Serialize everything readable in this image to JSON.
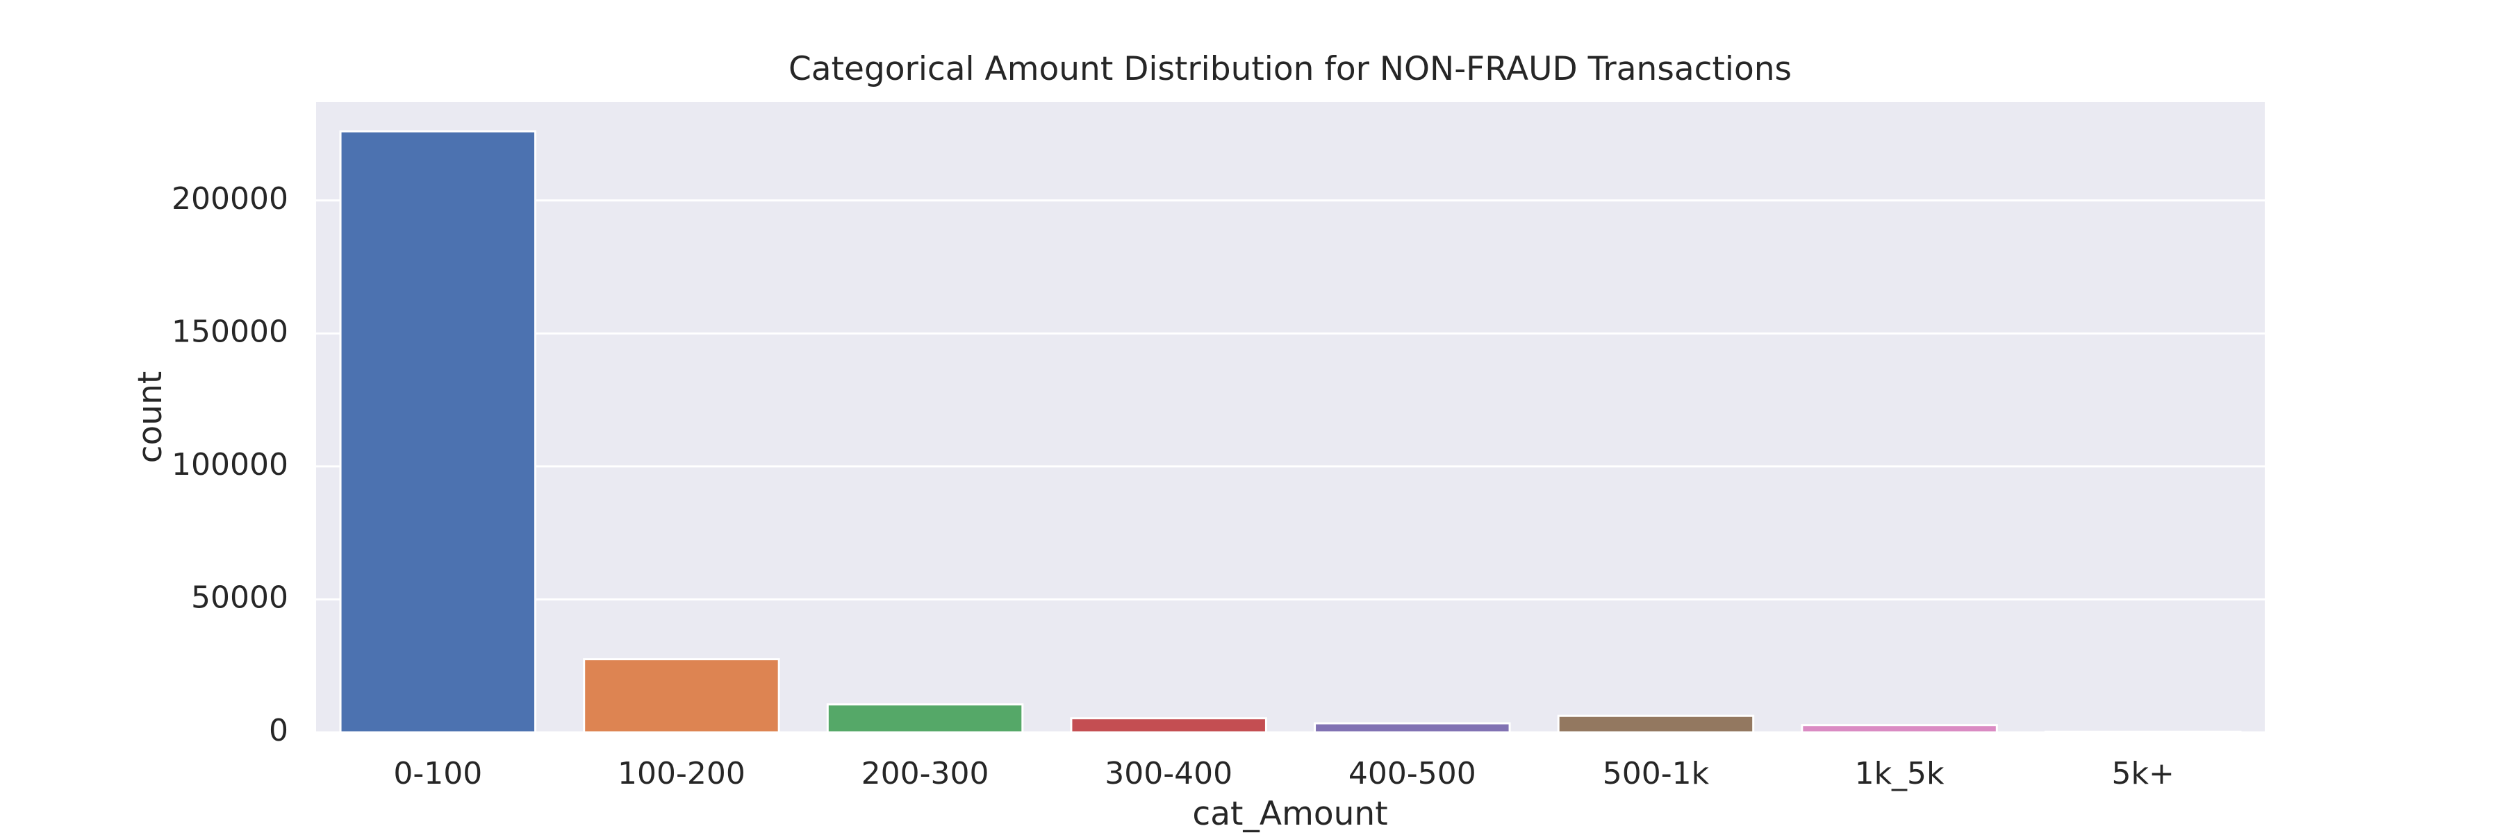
{
  "chart_data": {
    "type": "bar",
    "title": "Categorical Amount Distribution for NON-FRAUD Transactions",
    "xlabel": "cat_Amount",
    "ylabel": "count",
    "categories": [
      "0-100",
      "100-200",
      "200-300",
      "300-400",
      "400-500",
      "500-1k",
      "1k_5k",
      "5k+"
    ],
    "values": [
      226000,
      27500,
      10500,
      5300,
      3400,
      6200,
      2700,
      200
    ],
    "ylim": [
      0,
      237000
    ],
    "yticks": [
      0,
      50000,
      100000,
      150000,
      200000
    ],
    "grid": true,
    "colors": {
      "background": "#EAEAF2",
      "grid": "#FFFFFF",
      "bars": [
        "#4C72B0",
        "#DD8452",
        "#55A868",
        "#C44E52",
        "#8172B3",
        "#937860",
        "#DA8BC3",
        "#8C8C8C"
      ]
    }
  }
}
